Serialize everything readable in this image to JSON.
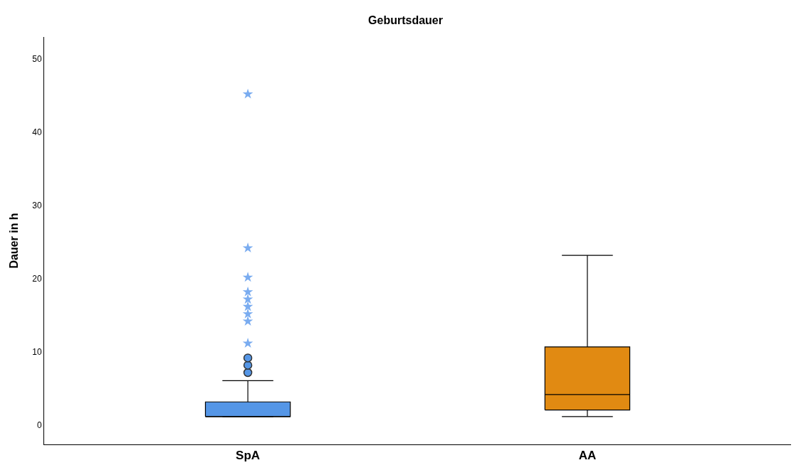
{
  "chart_data": {
    "type": "box",
    "title": "Geburtsdauer",
    "ylabel": "Dauer in h",
    "categories": [
      "SpA",
      "AA"
    ],
    "boxes": [
      {
        "low": 1.2,
        "q1": 1.2,
        "median": 1.2,
        "q3": 3.2,
        "high": 6.1,
        "outliers": [
          7.2,
          8.2,
          9.2
        ]
      },
      {
        "low": 1.2,
        "q1": 2.1,
        "median": 4.2,
        "q3": 10.7,
        "high": 23.2
      }
    ],
    "colors": [
      "#5596e6",
      "#e18a12"
    ],
    "series": [
      {
        "type": "scatter",
        "x": [
          "SpA",
          "SpA",
          "SpA",
          "SpA",
          "SpA",
          "SpA",
          "SpA",
          "SpA",
          "SpA"
        ],
        "values": [
          11.2,
          14.2,
          15.2,
          16.2,
          17.2,
          18.2,
          20.2,
          24.2,
          45.2
        ],
        "marker": "star",
        "color": "#7aacf0"
      }
    ],
    "ylim": [
      -2.6,
      53
    ],
    "yticks": [
      0,
      10,
      20,
      30,
      40,
      50
    ]
  }
}
